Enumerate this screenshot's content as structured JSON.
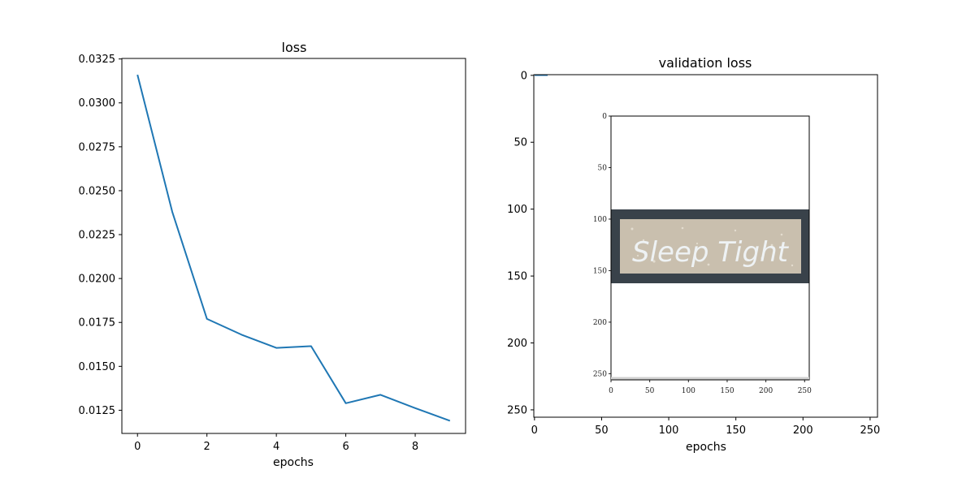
{
  "chart_data": [
    {
      "type": "line",
      "title": "loss",
      "xlabel": "epochs",
      "ylabel": "",
      "xlim": [
        -0.45,
        9.45
      ],
      "ylim": [
        0.01118,
        0.03253
      ],
      "xticks": [
        0,
        2,
        4,
        6,
        8
      ],
      "yticks": [
        0.0125,
        0.015,
        0.0175,
        0.02,
        0.0225,
        0.025,
        0.0275,
        0.03,
        0.0325
      ],
      "ytick_labels": [
        "0.0125",
        "0.0150",
        "0.0175",
        "0.0200",
        "0.0225",
        "0.0250",
        "0.0275",
        "0.0300",
        "0.0325"
      ],
      "grid": false,
      "color": "#1f77b4",
      "series": [
        {
          "x": [
            0,
            1,
            2,
            3,
            4,
            5,
            6,
            7,
            8,
            9
          ],
          "values": [
            0.0316,
            0.0238,
            0.0177,
            0.0168,
            0.01605,
            0.01615,
            0.0129,
            0.01338,
            0.01262,
            0.0119
          ]
        }
      ]
    },
    {
      "type": "image",
      "title": "validation loss",
      "xlabel": "epochs",
      "xlim": [
        -0.5,
        255.5
      ],
      "ylim": [
        255.5,
        -0.5
      ],
      "xticks": [
        0,
        50,
        100,
        150,
        200,
        250
      ],
      "yticks": [
        0,
        50,
        100,
        150,
        200,
        250
      ],
      "inner_image": {
        "xticks": [
          0,
          50,
          100,
          150,
          200,
          250
        ],
        "yticks": [
          0,
          50,
          100,
          150,
          200,
          250
        ],
        "sign_text": "Sleep Tight",
        "frame_color": "#39424a",
        "panel_color": "#c9bfae"
      }
    }
  ]
}
